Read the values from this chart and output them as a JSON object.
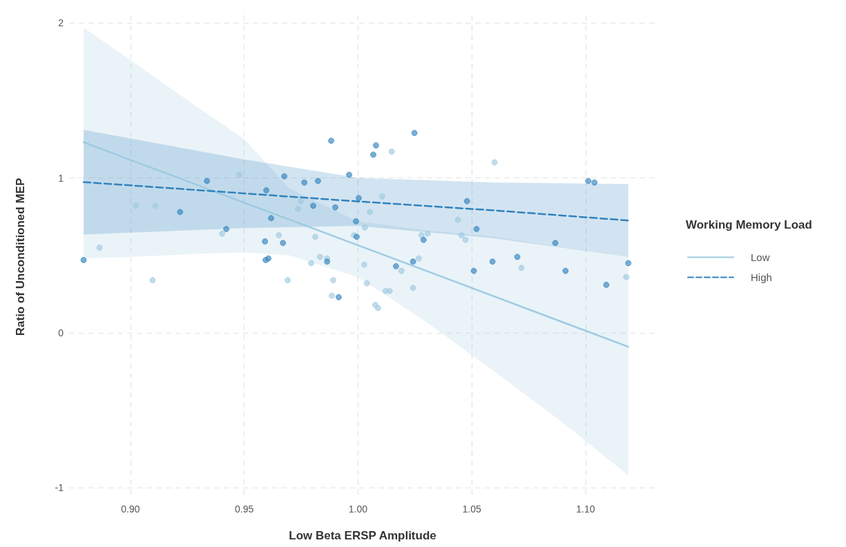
{
  "chart_data": {
    "type": "scatter",
    "xlabel": "Low Beta ERSP Amplitude",
    "ylabel": "Ratio of Unconditioned MEP",
    "legend_title": "Working Memory Load",
    "legend": "right",
    "grid": true,
    "marker": "circle",
    "xlim": [
      0.873,
      1.131
    ],
    "ylim": [
      -1.07,
      2.05
    ],
    "xticks": [
      {
        "value": 0.9,
        "label": "0.90"
      },
      {
        "value": 0.95,
        "label": "0.95"
      },
      {
        "value": 1.0,
        "label": "1.00"
      },
      {
        "value": 1.05,
        "label": "1.05"
      },
      {
        "value": 1.1,
        "label": "1.10"
      }
    ],
    "yticks": [
      -1,
      0,
      1,
      2
    ],
    "series": [
      {
        "color": "#9ecae1",
        "x": [
          0.8864,
          0.9024,
          0.9109,
          0.9097,
          0.9403,
          0.9479,
          0.9652,
          0.9691,
          0.9736,
          0.9748,
          0.9812,
          0.9794,
          0.9833,
          0.9864,
          0.9891,
          0.9885,
          0.9982,
          1.003,
          1.0052,
          1.0106,
          1.0027,
          1.0039,
          1.0121,
          1.0139,
          1.0076,
          1.0088,
          1.0148,
          1.0191,
          1.0242,
          1.0267,
          1.0279,
          1.0306,
          1.0439,
          1.0455,
          1.0473,
          1.06,
          1.0718,
          1.1179
        ],
        "values": [
          0.55,
          0.82,
          0.82,
          0.34,
          0.64,
          1.02,
          0.63,
          0.34,
          0.8,
          0.85,
          0.62,
          0.45,
          0.49,
          0.48,
          0.34,
          0.24,
          0.63,
          0.68,
          0.78,
          0.88,
          0.44,
          0.32,
          0.27,
          0.27,
          0.18,
          0.16,
          1.17,
          0.4,
          0.29,
          0.48,
          0.63,
          0.64,
          0.73,
          0.63,
          0.6,
          1.1,
          0.42,
          0.36
        ]
      },
      {
        "color": "#3182bd",
        "x": [
          0.8794,
          0.9218,
          0.9336,
          0.9421,
          0.9591,
          0.9594,
          0.9606,
          0.9597,
          0.9618,
          0.967,
          0.9676,
          0.9764,
          0.9803,
          0.9824,
          0.9864,
          0.9882,
          0.99,
          0.9915,
          0.9961,
          0.9991,
          0.9994,
          1.0003,
          1.0067,
          1.0079,
          1.0167,
          1.0242,
          1.0248,
          1.0288,
          1.0479,
          1.0509,
          1.0521,
          1.0591,
          1.07,
          1.0867,
          1.0912,
          1.1012,
          1.1039,
          1.1091,
          1.1188
        ],
        "values": [
          0.47,
          0.78,
          0.98,
          0.67,
          0.59,
          0.47,
          0.48,
          0.92,
          0.74,
          0.58,
          1.01,
          0.97,
          0.82,
          0.98,
          0.46,
          1.24,
          0.81,
          0.23,
          1.02,
          0.72,
          0.62,
          0.87,
          1.15,
          1.21,
          0.43,
          0.46,
          1.29,
          0.6,
          0.85,
          0.4,
          0.67,
          0.46,
          0.49,
          0.58,
          0.4,
          0.98,
          0.97,
          0.31,
          0.45
        ]
      },
      {
        "type": "line",
        "name": "Low",
        "color": "#9ecae1",
        "line_style": "solid",
        "marker": "none",
        "x": [
          0.8794,
          0.9,
          0.93,
          0.95,
          0.97,
          1.0,
          1.03,
          1.06,
          1.09,
          1.1188
        ],
        "values": [
          1.23,
          1.116,
          0.951,
          0.84,
          0.73,
          0.565,
          0.4,
          0.234,
          0.069,
          -0.09
        ],
        "lower": [
          0.48,
          0.49,
          0.51,
          0.52,
          0.5,
          0.36,
          0.07,
          -0.25,
          -0.58,
          -0.92
        ],
        "upper": [
          1.97,
          1.76,
          1.45,
          1.25,
          0.93,
          0.72,
          0.66,
          0.62,
          0.55,
          0.49
        ]
      },
      {
        "type": "line",
        "name": "High",
        "color": "#3182bd",
        "line_style": "dashed",
        "marker": "none",
        "x": [
          0.8794,
          0.95,
          1.0,
          1.06,
          1.1188
        ],
        "values": [
          0.973,
          0.9,
          0.848,
          0.79,
          0.725
        ],
        "lower": [
          0.635,
          0.676,
          0.69,
          0.61,
          0.49
        ],
        "upper": [
          1.31,
          1.12,
          1.0,
          0.97,
          0.96
        ]
      }
    ]
  }
}
